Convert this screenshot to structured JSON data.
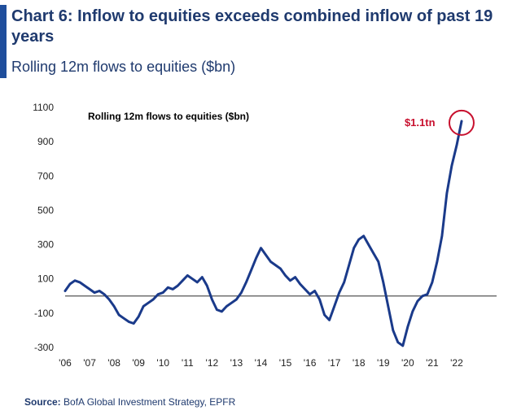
{
  "header": {
    "title": "Chart 6: Inflow to equities exceeds combined inflow of past 19 years",
    "subtitle": "Rolling 12m flows to equities ($bn)"
  },
  "footer": {
    "source_label": "Source:",
    "source_text": "BofA Global Investment Strategy, EPFR"
  },
  "chart_data": {
    "type": "line",
    "title": "Rolling 12m flows to equities ($bn)",
    "xlabel": "",
    "ylabel": "",
    "ylim": [
      -300,
      1100
    ],
    "xlim": [
      2006,
      2022.8
    ],
    "y_ticks": [
      1100,
      900,
      700,
      500,
      300,
      100,
      -100,
      -300
    ],
    "x_ticks": [
      "'06",
      "'07",
      "'08",
      "'09",
      "'10",
      "'11",
      "'12",
      "'13",
      "'14",
      "'15",
      "'16",
      "'17",
      "'18",
      "'19",
      "'20",
      "'21",
      "'22"
    ],
    "grid": false,
    "line_color": "#1a3a8a",
    "zero_line_color": "#555555",
    "series": [
      {
        "x": [
          2006.0,
          2006.2,
          2006.4,
          2006.6,
          2006.8,
          2007.0,
          2007.2,
          2007.4,
          2007.6,
          2007.8,
          2008.0,
          2008.2,
          2008.4,
          2008.6,
          2008.8,
          2009.0,
          2009.2,
          2009.4,
          2009.6,
          2009.8,
          2010.0,
          2010.2,
          2010.4,
          2010.6,
          2010.8,
          2011.0,
          2011.2,
          2011.4,
          2011.6,
          2011.8,
          2012.0,
          2012.2,
          2012.4,
          2012.6,
          2012.8,
          2013.0,
          2013.2,
          2013.4,
          2013.6,
          2013.8,
          2014.0,
          2014.2,
          2014.4,
          2014.6,
          2014.8,
          2015.0,
          2015.2,
          2015.4,
          2015.6,
          2015.8,
          2016.0,
          2016.2,
          2016.4,
          2016.6,
          2016.8,
          2017.0,
          2017.2,
          2017.4,
          2017.6,
          2017.8,
          2018.0,
          2018.2,
          2018.4,
          2018.6,
          2018.8,
          2019.0,
          2019.2,
          2019.4,
          2019.6,
          2019.8,
          2020.0,
          2020.2,
          2020.4,
          2020.6,
          2020.8,
          2021.0,
          2021.2,
          2021.4,
          2021.6,
          2021.8,
          2022.0,
          2022.2
        ],
        "values": [
          30,
          70,
          90,
          80,
          60,
          40,
          20,
          30,
          10,
          -20,
          -60,
          -110,
          -130,
          -150,
          -160,
          -120,
          -60,
          -40,
          -20,
          10,
          20,
          50,
          40,
          60,
          90,
          120,
          100,
          80,
          110,
          60,
          -20,
          -80,
          -90,
          -60,
          -40,
          -20,
          20,
          80,
          150,
          220,
          280,
          240,
          200,
          180,
          160,
          120,
          90,
          110,
          70,
          40,
          10,
          30,
          -20,
          -110,
          -140,
          -60,
          20,
          80,
          180,
          280,
          330,
          350,
          300,
          250,
          200,
          80,
          -60,
          -200,
          -270,
          -290,
          -180,
          -90,
          -30,
          0,
          10,
          80,
          200,
          350,
          600,
          760,
          880,
          1020
        ]
      }
    ],
    "annotations": [
      {
        "text": "$1.1tn",
        "x": 2021.4,
        "y": 1030,
        "color": "#c8102e"
      }
    ]
  }
}
